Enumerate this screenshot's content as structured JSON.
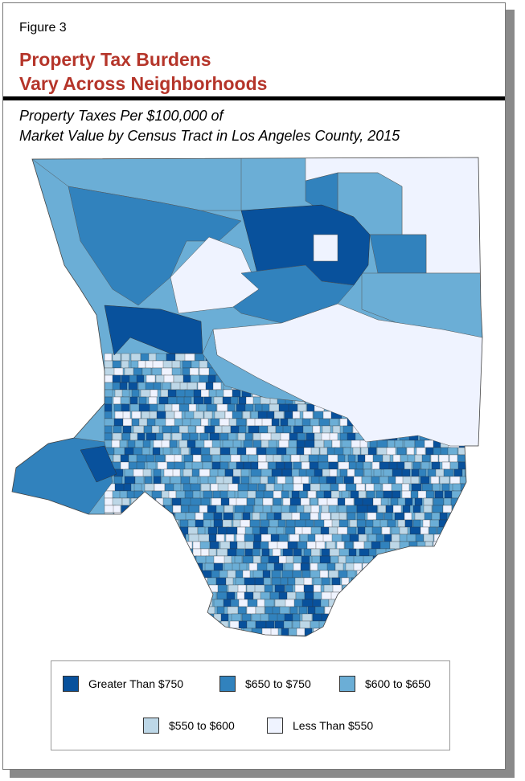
{
  "figure_label": "Figure 3",
  "title_line1": "Property Tax Burdens",
  "title_line2": "Vary Across Neighborhoods",
  "subtitle_line1": "Property Taxes Per $100,000 of",
  "subtitle_line2": "Market Value by Census Tract in Los Angeles County, 2015",
  "legend": [
    {
      "label": "Greater Than $750",
      "color": "#08519c"
    },
    {
      "label": "$650 to $750",
      "color": "#3182bd"
    },
    {
      "label": "$600 to $650",
      "color": "#6baed6"
    },
    {
      "label": "$550 to $600",
      "color": "#bdd7e7"
    },
    {
      "label": "Less Than $550",
      "color": "#eff3ff"
    }
  ]
}
